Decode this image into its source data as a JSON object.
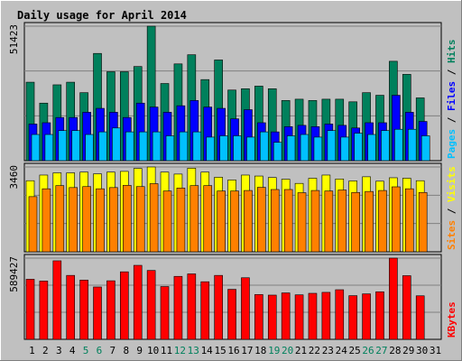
{
  "colors": {
    "hits": "#00805c",
    "files": "#0000ff",
    "pages": "#00c0ff",
    "visits": "#ffff00",
    "sites": "#ff8000",
    "kbytes": "#ff0000",
    "title": "#0000ff",
    "background": "#c0c0c0",
    "weekend_day_label": "#00805c",
    "day_label": "#000000"
  },
  "chart_data": {
    "type": "bar",
    "title": "Daily usage for April 2014",
    "x": [
      1,
      2,
      3,
      4,
      5,
      6,
      7,
      8,
      9,
      10,
      11,
      12,
      13,
      14,
      15,
      16,
      17,
      18,
      19,
      20,
      21,
      22,
      23,
      24,
      25,
      26,
      27,
      28,
      29,
      30,
      31
    ],
    "weekend_days": [
      5,
      6,
      12,
      13,
      19,
      20,
      26,
      27
    ],
    "panels": [
      {
        "id": "hits-files-pages",
        "ymax_label": "51423",
        "ymax": 51423,
        "legend": [
          {
            "text": "Pages",
            "color_key": "pages"
          },
          {
            "text": " / ",
            "color_key": "day_label"
          },
          {
            "text": "Files",
            "color_key": "files"
          },
          {
            "text": " / ",
            "color_key": "day_label"
          },
          {
            "text": "Hits",
            "color_key": "hits"
          }
        ],
        "series": [
          {
            "name": "Hits",
            "color_key": "hits",
            "values": [
              30000,
              22000,
              29000,
              30000,
              26000,
              41000,
              34000,
              34000,
              36000,
              51423,
              29500,
              37000,
              40500,
              31000,
              38500,
              27000,
              27500,
              28500,
              27500,
              23000,
              23500,
              23000,
              23500,
              23500,
              22500,
              26000,
              25000,
              38000,
              33000,
              24000,
              0
            ]
          },
          {
            "name": "Files",
            "color_key": "files",
            "values": [
              14000,
              14500,
              16500,
              16500,
              18500,
              20000,
              18500,
              16500,
              22000,
              20500,
              18500,
              21000,
              23000,
              20500,
              20000,
              16000,
              19500,
              14500,
              11000,
              13000,
              13500,
              13000,
              14000,
              13500,
              12500,
              14500,
              14500,
              25000,
              18500,
              15000,
              0
            ]
          },
          {
            "name": "Pages",
            "color_key": "pages",
            "values": [
              10000,
              10000,
              11500,
              11500,
              10000,
              11000,
              12500,
              11000,
              11000,
              11000,
              9500,
              11000,
              11000,
              9000,
              9500,
              9500,
              9000,
              11000,
              7000,
              9500,
              10000,
              9000,
              11500,
              9000,
              10500,
              10000,
              11500,
              12000,
              12000,
              9500,
              0
            ]
          }
        ]
      },
      {
        "id": "visits-sites",
        "ymax_label": "3460",
        "ymax": 3460,
        "legend": [
          {
            "text": "Sites",
            "color_key": "sites"
          },
          {
            "text": " / ",
            "color_key": "day_label"
          },
          {
            "text": "Visits",
            "color_key": "visits"
          }
        ],
        "series": [
          {
            "name": "Visits",
            "color_key": "visits",
            "values": [
              2900,
              3130,
              3220,
              3220,
              3250,
              3180,
              3250,
              3280,
              3400,
              3460,
              3250,
              3170,
              3410,
              3250,
              3040,
              2930,
              3130,
              3090,
              3030,
              2960,
              2790,
              3000,
              3130,
              2970,
              2890,
              3060,
              2880,
              3020,
              3000,
              2900,
              0
            ]
          },
          {
            "name": "Sites",
            "color_key": "sites",
            "values": [
              2250,
              2570,
              2700,
              2620,
              2660,
              2570,
              2620,
              2710,
              2660,
              2780,
              2480,
              2600,
              2700,
              2700,
              2480,
              2480,
              2500,
              2630,
              2540,
              2540,
              2410,
              2500,
              2480,
              2520,
              2420,
              2460,
              2500,
              2650,
              2570,
              2420,
              0
            ]
          }
        ]
      },
      {
        "id": "kbytes",
        "ymax_label": "589427",
        "ymax": 589427,
        "legend": [
          {
            "text": "KBytes",
            "color_key": "kbytes"
          }
        ],
        "series": [
          {
            "name": "KBytes",
            "color_key": "kbytes",
            "values": [
              436000,
              423000,
              570000,
              464000,
              430000,
              380000,
              425000,
              490000,
              537000,
              500000,
              383000,
              457000,
              475000,
              418000,
              464000,
              363000,
              447000,
              325000,
              321000,
              337000,
              323000,
              334000,
              341000,
              360000,
              317000,
              330000,
              345000,
              589427,
              462000,
              316000,
              0
            ]
          }
        ]
      }
    ]
  }
}
